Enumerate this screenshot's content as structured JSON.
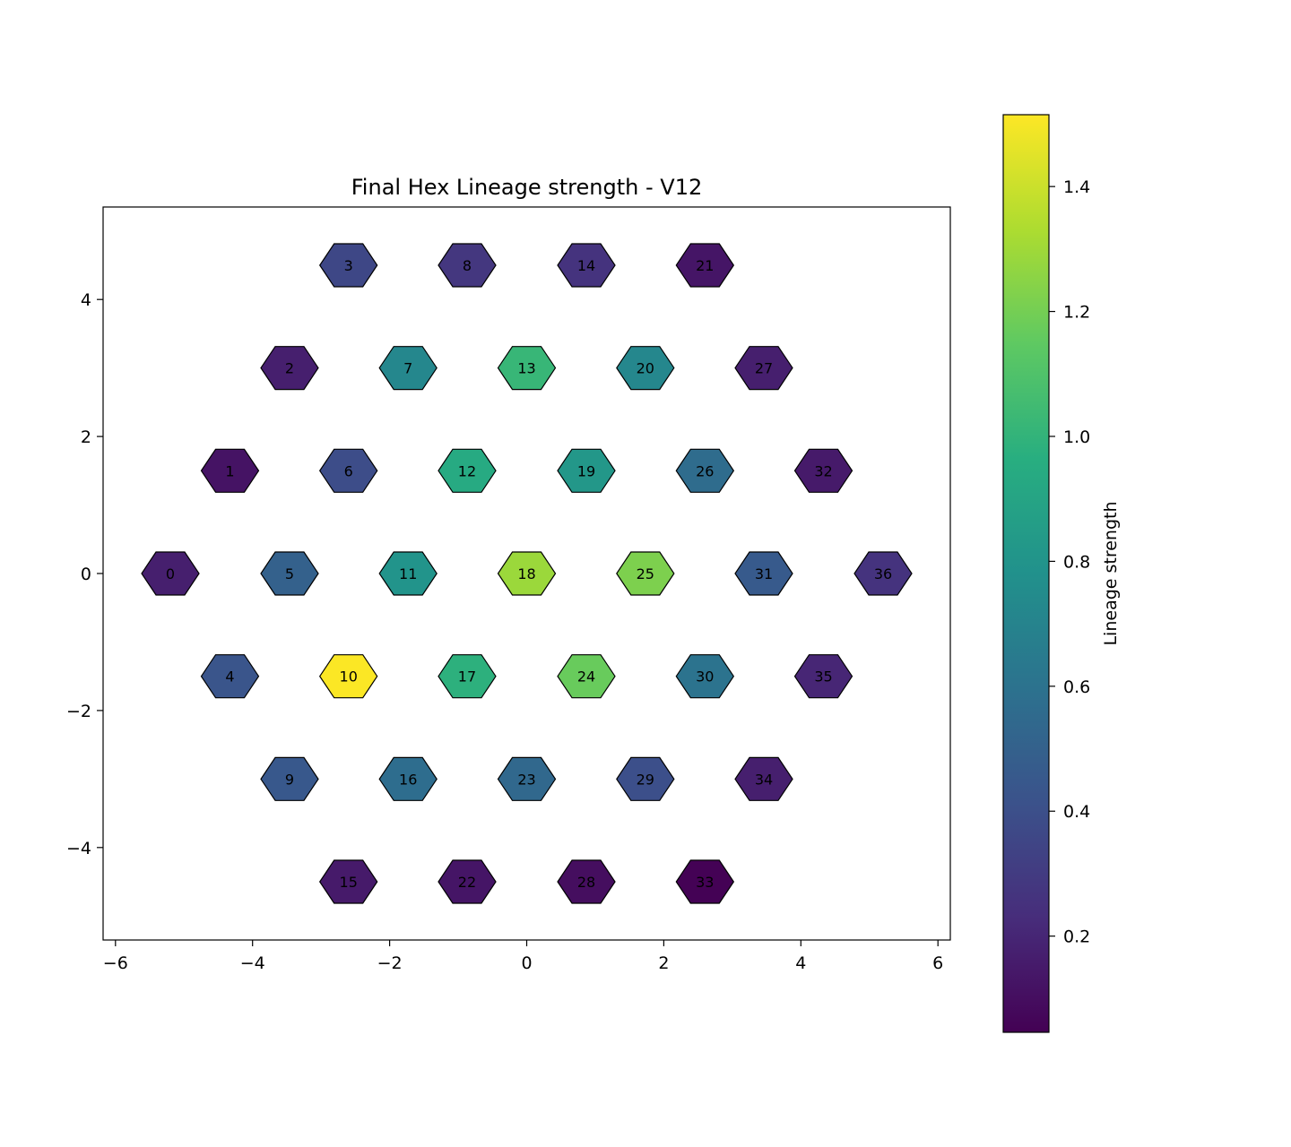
{
  "chart_data": {
    "type": "hexbin",
    "title": "Final Hex Lineage strength - V12",
    "xlabel": "",
    "ylabel": "",
    "xlim": [
      -6.2,
      6.2
    ],
    "ylim": [
      -5.35,
      5.35
    ],
    "x_ticks": [
      -6,
      -4,
      -2,
      0,
      2,
      4,
      6
    ],
    "x_tick_labels": [
      "−6",
      "−4",
      "−2",
      "0",
      "2",
      "4",
      "6"
    ],
    "y_ticks": [
      -4,
      -2,
      0,
      2,
      4
    ],
    "y_tick_labels": [
      "−4",
      "−2",
      "0",
      "2",
      "4"
    ],
    "colormap": "viridis",
    "colorbar": {
      "label": "Lineage strength",
      "range": [
        0.046,
        1.515
      ],
      "ticks": [
        0.2,
        0.4,
        0.6,
        0.8,
        1.0,
        1.2,
        1.4
      ],
      "tick_labels": [
        "0.2",
        "0.4",
        "0.6",
        "0.8",
        "1.0",
        "1.2",
        "1.4"
      ]
    },
    "cells": [
      {
        "id": "0",
        "x": -5.2,
        "y": 0.0,
        "value": 0.17
      },
      {
        "id": "1",
        "x": -4.33,
        "y": 1.5,
        "value": 0.12
      },
      {
        "id": "2",
        "x": -3.46,
        "y": 3.0,
        "value": 0.17
      },
      {
        "id": "3",
        "x": -2.6,
        "y": 4.5,
        "value": 0.36
      },
      {
        "id": "4",
        "x": -4.33,
        "y": -1.5,
        "value": 0.43
      },
      {
        "id": "5",
        "x": -3.46,
        "y": 0.0,
        "value": 0.5
      },
      {
        "id": "6",
        "x": -2.6,
        "y": 1.5,
        "value": 0.39
      },
      {
        "id": "7",
        "x": -1.73,
        "y": 3.0,
        "value": 0.72
      },
      {
        "id": "8",
        "x": -0.87,
        "y": 4.5,
        "value": 0.28
      },
      {
        "id": "9",
        "x": -3.46,
        "y": -3.0,
        "value": 0.45
      },
      {
        "id": "10",
        "x": -2.6,
        "y": -1.5,
        "value": 1.51
      },
      {
        "id": "11",
        "x": -1.73,
        "y": 0.0,
        "value": 0.8
      },
      {
        "id": "12",
        "x": -0.87,
        "y": 1.5,
        "value": 0.94
      },
      {
        "id": "13",
        "x": 0.0,
        "y": 3.0,
        "value": 1.02
      },
      {
        "id": "14",
        "x": 0.87,
        "y": 4.5,
        "value": 0.26
      },
      {
        "id": "15",
        "x": -2.6,
        "y": -4.5,
        "value": 0.15
      },
      {
        "id": "16",
        "x": -1.73,
        "y": -3.0,
        "value": 0.57
      },
      {
        "id": "17",
        "x": -0.87,
        "y": -1.5,
        "value": 0.98
      },
      {
        "id": "18",
        "x": 0.0,
        "y": 0.0,
        "value": 1.29
      },
      {
        "id": "19",
        "x": 0.87,
        "y": 1.5,
        "value": 0.82
      },
      {
        "id": "20",
        "x": 1.73,
        "y": 3.0,
        "value": 0.72
      },
      {
        "id": "21",
        "x": 2.6,
        "y": 4.5,
        "value": 0.13
      },
      {
        "id": "22",
        "x": -0.87,
        "y": -4.5,
        "value": 0.13
      },
      {
        "id": "23",
        "x": 0.0,
        "y": -3.0,
        "value": 0.54
      },
      {
        "id": "24",
        "x": 0.87,
        "y": -1.5,
        "value": 1.17
      },
      {
        "id": "25",
        "x": 1.73,
        "y": 0.0,
        "value": 1.22
      },
      {
        "id": "26",
        "x": 2.6,
        "y": 1.5,
        "value": 0.56
      },
      {
        "id": "27",
        "x": 3.46,
        "y": 3.0,
        "value": 0.17
      },
      {
        "id": "28",
        "x": 0.87,
        "y": -4.5,
        "value": 0.1
      },
      {
        "id": "29",
        "x": 1.73,
        "y": -3.0,
        "value": 0.4
      },
      {
        "id": "30",
        "x": 2.6,
        "y": -1.5,
        "value": 0.6
      },
      {
        "id": "31",
        "x": 3.46,
        "y": 0.0,
        "value": 0.46
      },
      {
        "id": "32",
        "x": 4.33,
        "y": 1.5,
        "value": 0.15
      },
      {
        "id": "33",
        "x": 2.6,
        "y": -4.5,
        "value": 0.05
      },
      {
        "id": "34",
        "x": 3.46,
        "y": -3.0,
        "value": 0.17
      },
      {
        "id": "35",
        "x": 4.33,
        "y": -1.5,
        "value": 0.2
      },
      {
        "id": "36",
        "x": 5.2,
        "y": 0.0,
        "value": 0.26
      }
    ]
  }
}
